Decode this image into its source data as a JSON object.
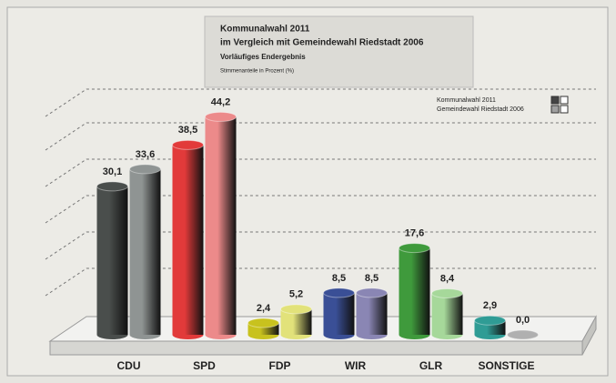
{
  "chart_data": {
    "type": "bar",
    "title": "Kommunalwahl 2011",
    "subtitle": "im Vergleich mit Gemeindewahl Riedstadt 2006",
    "note": "Vorläufiges Endergebnis",
    "ylabel": "Stimmenanteile in Prozent (%)",
    "categories": [
      "CDU",
      "SPD",
      "FDP",
      "WIR",
      "GLR",
      "SONSTIGE"
    ],
    "series": [
      {
        "name": "Kommunalwahl 2011",
        "color": "#444444",
        "colors": [
          "#4a4e4c",
          "#e23a3a",
          "#c8c21e",
          "#3a4f96",
          "#3f9a3c",
          "#2f9c95"
        ],
        "values": [
          30.1,
          38.5,
          2.4,
          8.5,
          17.6,
          2.9
        ],
        "value_labels": [
          "30,1",
          "38,5",
          "2,4",
          "8,5",
          "17,6",
          "2,9"
        ]
      },
      {
        "name": "Gemeindewahl Riedstadt 2006",
        "color": "#a0a0a0",
        "colors": [
          "#8f9493",
          "#ec8a8a",
          "#e2e27a",
          "#8a86b4",
          "#a6d89a",
          "#b0b0b0"
        ],
        "values": [
          33.6,
          44.2,
          5.2,
          8.5,
          8.4,
          0.0
        ],
        "value_labels": [
          "33,6",
          "44,2",
          "5,2",
          "8,5",
          "8,4",
          "0,0"
        ]
      }
    ],
    "ylim": [
      0,
      50
    ],
    "legend": "upper right"
  }
}
